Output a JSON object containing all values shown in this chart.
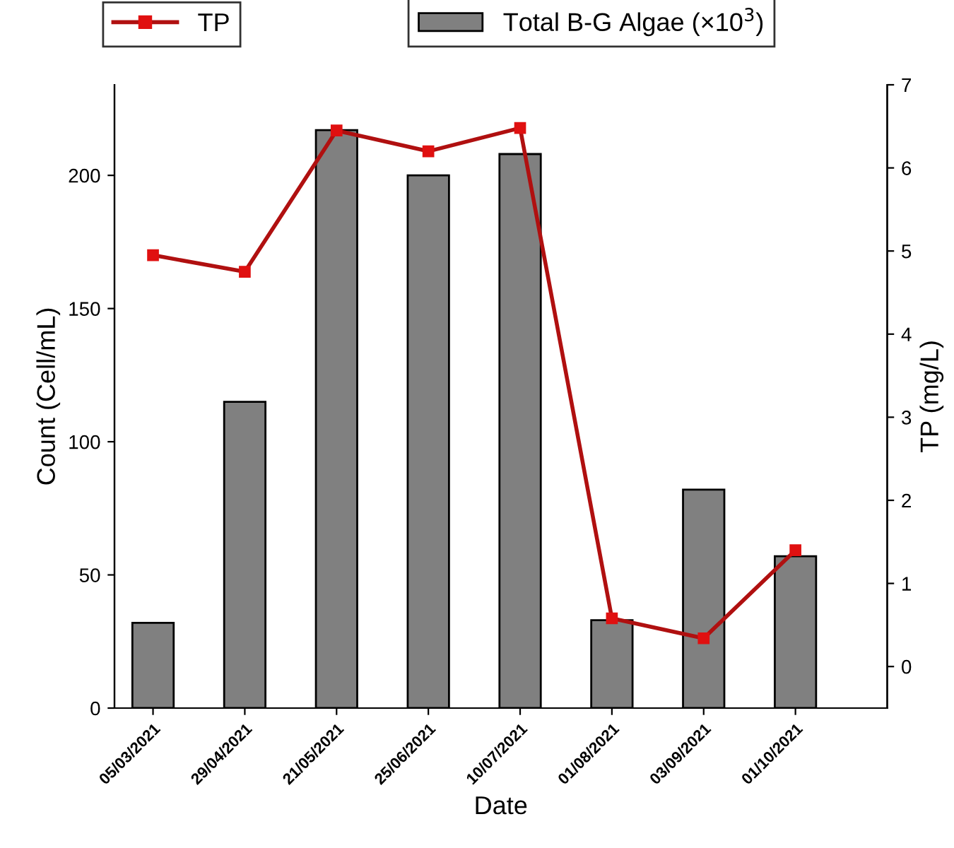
{
  "chart_data": {
    "type": "bar",
    "xlabel": "Date",
    "ylabel": "Count (Cell/mL)",
    "y2label": "TP (mg/L)",
    "categories": [
      "05/03/2021",
      "29/04/2021",
      "21/05/2021",
      "25/06/2021",
      "10/07/2021",
      "01/08/2021",
      "03/09/2021",
      "01/10/2021"
    ],
    "series": [
      {
        "name": "Total B-G Algae (×10$^{3}$)",
        "type": "bar",
        "color": "#808080",
        "values": [
          32,
          115,
          217,
          200,
          208,
          33,
          82,
          57
        ]
      },
      {
        "name": "TP",
        "type": "line",
        "axis": "y2",
        "color": "#b01010",
        "marker": "square",
        "values": [
          4.95,
          4.75,
          6.45,
          6.2,
          6.48,
          0.58,
          0.34,
          1.4
        ]
      }
    ],
    "ylim": [
      0,
      234
    ],
    "yticks": [
      0,
      50,
      100,
      150,
      200
    ],
    "y2lim": [
      -0.5,
      7
    ],
    "y2ticks": [
      0,
      1,
      2,
      3,
      4,
      5,
      6,
      7
    ],
    "legend": "top",
    "grid": false
  }
}
